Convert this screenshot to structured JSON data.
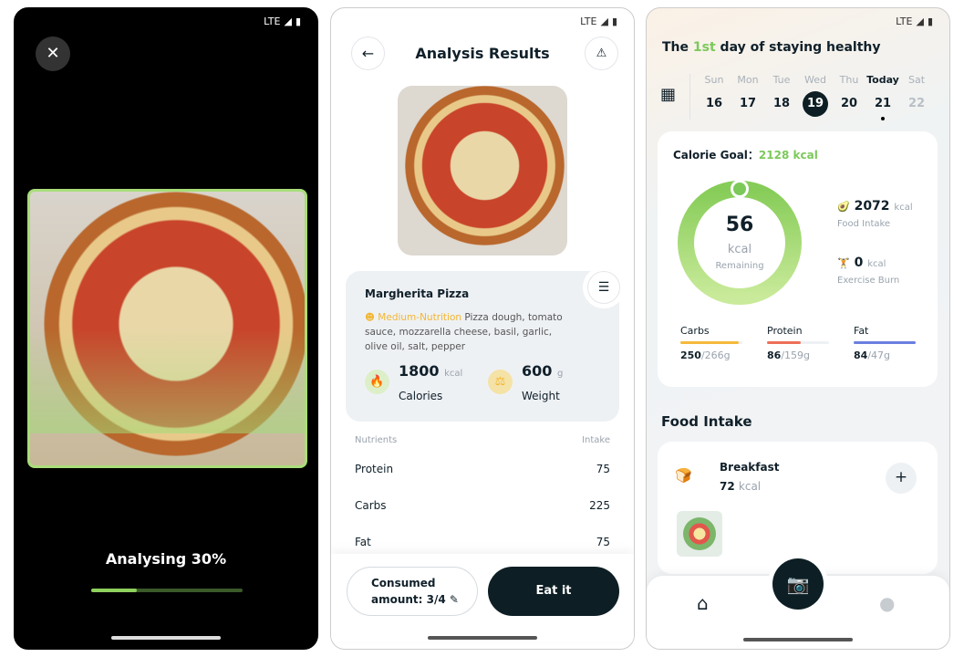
{
  "status": {
    "network": "LTE"
  },
  "screen1": {
    "analysing_label": "Analysing 30%",
    "progress": 0.3
  },
  "screen2": {
    "title": "Analysis Results",
    "food_name": "Margherita Pizza",
    "nutrition_level": "Medium-Nutrition",
    "ingredients": "Pizza dough, tomato sauce, mozzarella cheese, basil, garlic, olive oil, salt, pepper",
    "calories_value": "1800",
    "calories_unit": "kcal",
    "calories_label": "Calories",
    "weight_value": "600",
    "weight_unit": "g",
    "weight_label": "Weight",
    "nutrients_header": "Nutrients",
    "intake_header": "Intake",
    "nutrients": [
      {
        "name": "Protein",
        "value": "75"
      },
      {
        "name": "Carbs",
        "value": "225"
      },
      {
        "name": "Fat",
        "value": "75"
      }
    ],
    "consumed_label": "Consumed amount: 3/4",
    "eat_label": "Eat it",
    "accent": "#f2b632"
  },
  "screen3": {
    "headline_pre": "The ",
    "headline_hl": "1st",
    "headline_post": " day of staying healthy",
    "days": [
      {
        "d": "Sun",
        "n": "16"
      },
      {
        "d": "Mon",
        "n": "17"
      },
      {
        "d": "Tue",
        "n": "18"
      },
      {
        "d": "Wed",
        "n": "19"
      },
      {
        "d": "Thu",
        "n": "20"
      },
      {
        "d": "Today",
        "n": "21"
      },
      {
        "d": "Sat",
        "n": "22"
      }
    ],
    "goal_label": "Calorie Goal：",
    "goal_value": "2128 kcal",
    "remaining_value": "56",
    "remaining_unit": "kcal",
    "remaining_label": "Remaining",
    "intake_value": "2072",
    "intake_unit": "kcal",
    "intake_label": "Food Intake",
    "burn_value": "0",
    "burn_unit": "kcal",
    "burn_label": "Exercise Burn",
    "macros": [
      {
        "name": "Carbs",
        "val": "250",
        "goal": "/266g",
        "pct": 0.94,
        "color": "#f5b93b"
      },
      {
        "name": "Protein",
        "val": "86",
        "goal": "/159g",
        "pct": 0.54,
        "color": "#ee6f57"
      },
      {
        "name": "Fat",
        "val": "84",
        "goal": "/47g",
        "pct": 1,
        "color": "#6b7fe0"
      }
    ],
    "section_title": "Food Intake",
    "meal_name": "Breakfast",
    "meal_value": "72",
    "meal_unit": "kcal",
    "accent": "#7cc95a"
  }
}
